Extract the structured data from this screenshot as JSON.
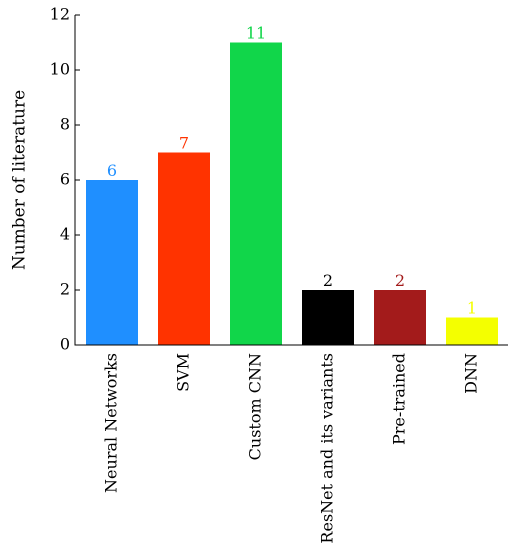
{
  "chart_data": {
    "type": "bar",
    "title": "",
    "xlabel": "",
    "ylabel": "Number of literature",
    "ylim": [
      0,
      12
    ],
    "yticks": [
      0,
      2,
      4,
      6,
      8,
      10,
      12
    ],
    "grid": false,
    "categories": [
      "Neural Networks",
      "SVM",
      "Custom CNN",
      "ResNet and its variants",
      "Pre-trained",
      "DNN"
    ],
    "values": [
      6,
      7,
      11,
      2,
      2,
      1
    ],
    "bar_colors": [
      "#1f8fff",
      "#ff3300",
      "#11d64a",
      "#000000",
      "#a31b1b",
      "#f4ff00"
    ],
    "label_colors": [
      "#1f8fff",
      "#ff3300",
      "#11d64a",
      "#000000",
      "#a31b1b",
      "#f4ff00"
    ]
  }
}
